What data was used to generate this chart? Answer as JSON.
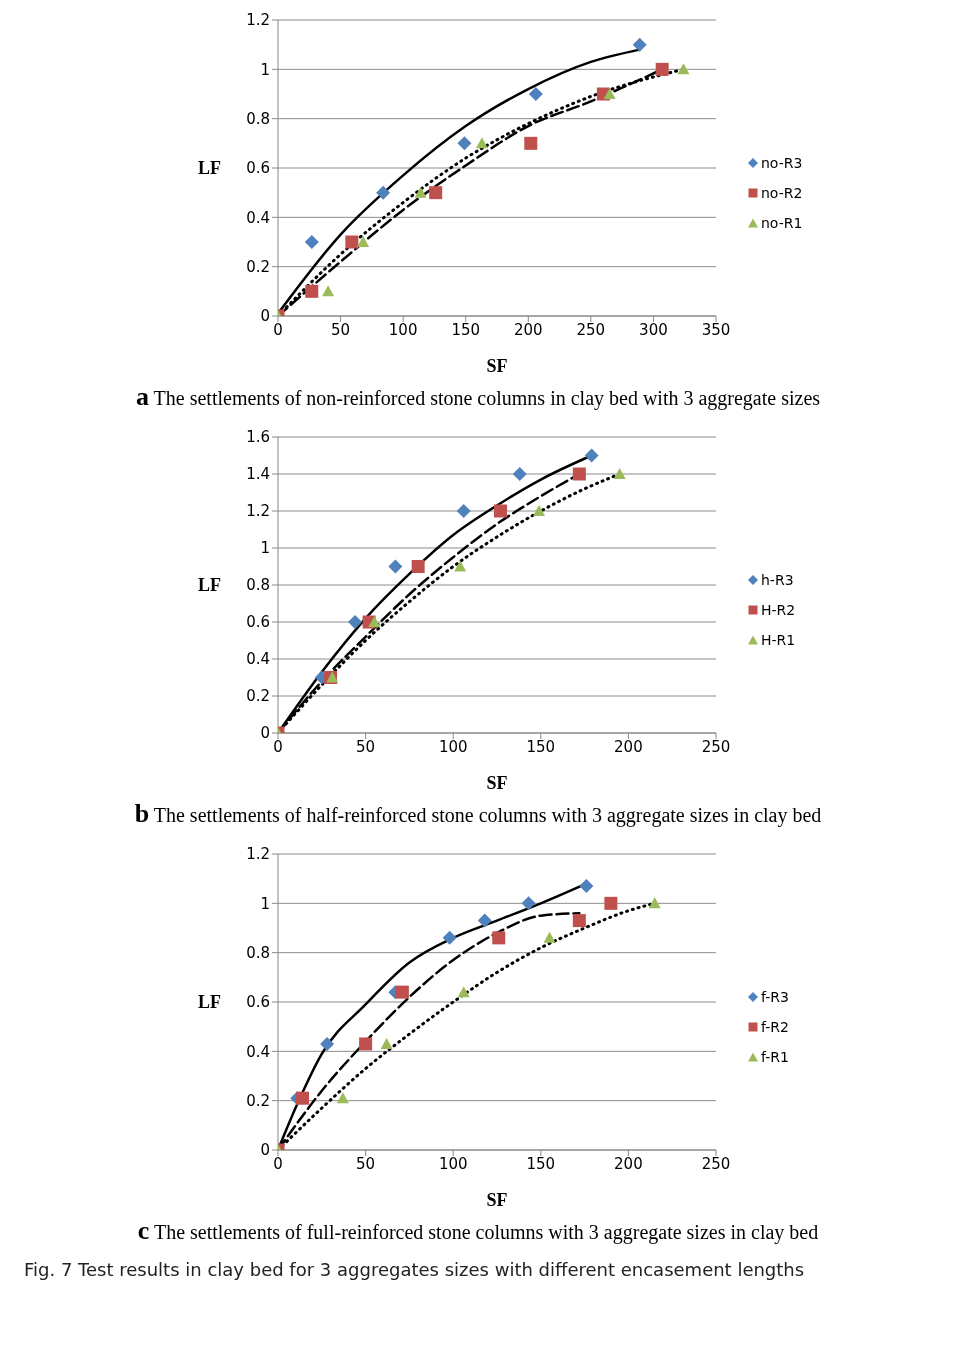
{
  "chart_data": [
    {
      "type": "scatter",
      "xlabel": "SF",
      "ylabel": "LF",
      "xlim": [
        0,
        350
      ],
      "xticks": [
        0,
        50,
        100,
        150,
        200,
        250,
        300,
        350
      ],
      "ylim": [
        0,
        1.2
      ],
      "yticks": [
        0,
        0.2,
        0.4,
        0.6,
        0.8,
        1,
        1.2
      ],
      "grid": "y",
      "legend": "right",
      "annotations": [
        "a The settlements of non-reinforced stone columns in clay bed with 3 aggregate sizes"
      ],
      "series": [
        {
          "name": "no-R3",
          "color": "#4f81bd",
          "marker": "diamond",
          "x": [
            27,
            84,
            149,
            206,
            289
          ],
          "values": [
            0.3,
            0.5,
            0.7,
            0.9,
            1.1
          ]
        },
        {
          "name": "no-R2",
          "color": "#c0504d",
          "marker": "square",
          "x": [
            0,
            27,
            59,
            126,
            202,
            260,
            307
          ],
          "values": [
            0,
            0.1,
            0.3,
            0.5,
            0.7,
            0.9,
            1
          ]
        },
        {
          "name": "no-R1",
          "color": "#9bbb59",
          "marker": "triangle",
          "x": [
            0,
            40,
            68,
            114,
            163,
            265,
            324
          ],
          "values": [
            0,
            0.1,
            0.3,
            0.5,
            0.7,
            0.9,
            1
          ]
        },
        {
          "type": "line",
          "color": "#000000",
          "line_style": "solid",
          "x": [
            0,
            50,
            100,
            150,
            200,
            250,
            289
          ],
          "values": [
            0.01,
            0.33,
            0.57,
            0.77,
            0.92,
            1.03,
            1.08
          ]
        },
        {
          "type": "line",
          "color": "#000000",
          "line_style": "dashed",
          "x": [
            0,
            50,
            100,
            150,
            200,
            250,
            307
          ],
          "values": [
            0,
            0.22,
            0.43,
            0.61,
            0.77,
            0.87,
            1
          ]
        },
        {
          "type": "line",
          "color": "#000000",
          "line_style": "dotted",
          "x": [
            0,
            50,
            100,
            150,
            200,
            250,
            324
          ],
          "values": [
            0,
            0.25,
            0.46,
            0.64,
            0.78,
            0.89,
            1
          ]
        }
      ]
    },
    {
      "type": "scatter",
      "xlabel": "SF",
      "ylabel": "LF",
      "xlim": [
        0,
        250
      ],
      "xticks": [
        0,
        50,
        100,
        150,
        200,
        250
      ],
      "ylim": [
        0,
        1.6
      ],
      "yticks": [
        0,
        0.2,
        0.4,
        0.6,
        0.8,
        1,
        1.2,
        1.4,
        1.6
      ],
      "grid": "y",
      "legend": "right",
      "annotations": [
        "b The settlements of half-reinforced stone columns with 3 aggregate sizes in clay bed"
      ],
      "series": [
        {
          "name": "h-R3",
          "color": "#4f81bd",
          "marker": "diamond",
          "x": [
            25,
            44,
            67,
            106,
            138,
            179
          ],
          "values": [
            0.3,
            0.6,
            0.9,
            1.2,
            1.4,
            1.5
          ]
        },
        {
          "name": "H-R2",
          "color": "#c0504d",
          "marker": "square",
          "x": [
            0,
            30,
            52,
            80,
            127,
            172
          ],
          "values": [
            0,
            0.3,
            0.6,
            0.9,
            1.2,
            1.4
          ]
        },
        {
          "name": "H-R1",
          "color": "#9bbb59",
          "marker": "triangle",
          "x": [
            0,
            31,
            55,
            104,
            149,
            195
          ],
          "values": [
            0,
            0.3,
            0.6,
            0.9,
            1.2,
            1.4
          ]
        },
        {
          "type": "line",
          "color": "#000000",
          "line_style": "solid",
          "x": [
            0,
            25,
            50,
            75,
            100,
            125,
            150,
            179
          ],
          "values": [
            0,
            0.33,
            0.62,
            0.86,
            1.07,
            1.23,
            1.37,
            1.5
          ]
        },
        {
          "type": "line",
          "color": "#000000",
          "line_style": "dashed",
          "x": [
            0,
            25,
            50,
            75,
            100,
            125,
            150,
            172
          ],
          "values": [
            0,
            0.28,
            0.52,
            0.75,
            0.95,
            1.13,
            1.28,
            1.4
          ]
        },
        {
          "type": "line",
          "color": "#000000",
          "line_style": "dotted",
          "x": [
            0,
            25,
            50,
            75,
            100,
            125,
            150,
            175,
            195
          ],
          "values": [
            0,
            0.26,
            0.5,
            0.71,
            0.9,
            1.06,
            1.2,
            1.32,
            1.4
          ]
        }
      ]
    },
    {
      "type": "scatter",
      "xlabel": "SF",
      "ylabel": "LF",
      "xlim": [
        0,
        250
      ],
      "xticks": [
        0,
        50,
        100,
        150,
        200,
        250
      ],
      "ylim": [
        0,
        1.2
      ],
      "yticks": [
        0,
        0.2,
        0.4,
        0.6,
        0.8,
        1,
        1.2
      ],
      "grid": "y",
      "legend": "right",
      "annotations": [
        "c The settlements of full-reinforced stone columns with 3 aggregate sizes in clay bed",
        "Fig. 7 Test results in clay bed for 3 aggregates sizes with different encasement lengths"
      ],
      "series": [
        {
          "name": "f-R3",
          "color": "#4f81bd",
          "marker": "diamond",
          "x": [
            11,
            28,
            67,
            98,
            118,
            143,
            176
          ],
          "values": [
            0.21,
            0.43,
            0.64,
            0.86,
            0.93,
            1,
            1.07
          ]
        },
        {
          "name": "f-R2",
          "color": "#c0504d",
          "marker": "square",
          "x": [
            0,
            14,
            50,
            71,
            126,
            172,
            190
          ],
          "values": [
            0,
            0.21,
            0.43,
            0.64,
            0.86,
            0.93,
            1
          ]
        },
        {
          "name": "f-R1",
          "color": "#9bbb59",
          "marker": "triangle",
          "x": [
            0,
            37,
            62,
            106,
            155,
            215
          ],
          "values": [
            0,
            0.21,
            0.43,
            0.64,
            0.86,
            1
          ]
        },
        {
          "type": "line",
          "color": "#000000",
          "line_style": "solid",
          "x": [
            0,
            10,
            25,
            50,
            75,
            100,
            125,
            150,
            176
          ],
          "values": [
            0,
            0.17,
            0.39,
            0.59,
            0.76,
            0.86,
            0.93,
            1,
            1.08
          ]
        },
        {
          "type": "line",
          "color": "#000000",
          "line_style": "dashed",
          "x": [
            0,
            25,
            50,
            75,
            100,
            125,
            150,
            172
          ],
          "values": [
            0,
            0.24,
            0.44,
            0.62,
            0.77,
            0.88,
            0.95,
            0.96
          ]
        },
        {
          "type": "line",
          "color": "#000000",
          "line_style": "dotted",
          "x": [
            0,
            25,
            50,
            75,
            100,
            125,
            150,
            175,
            200,
            215
          ],
          "values": [
            0,
            0.17,
            0.33,
            0.47,
            0.6,
            0.72,
            0.82,
            0.9,
            0.97,
            1
          ]
        }
      ]
    }
  ]
}
